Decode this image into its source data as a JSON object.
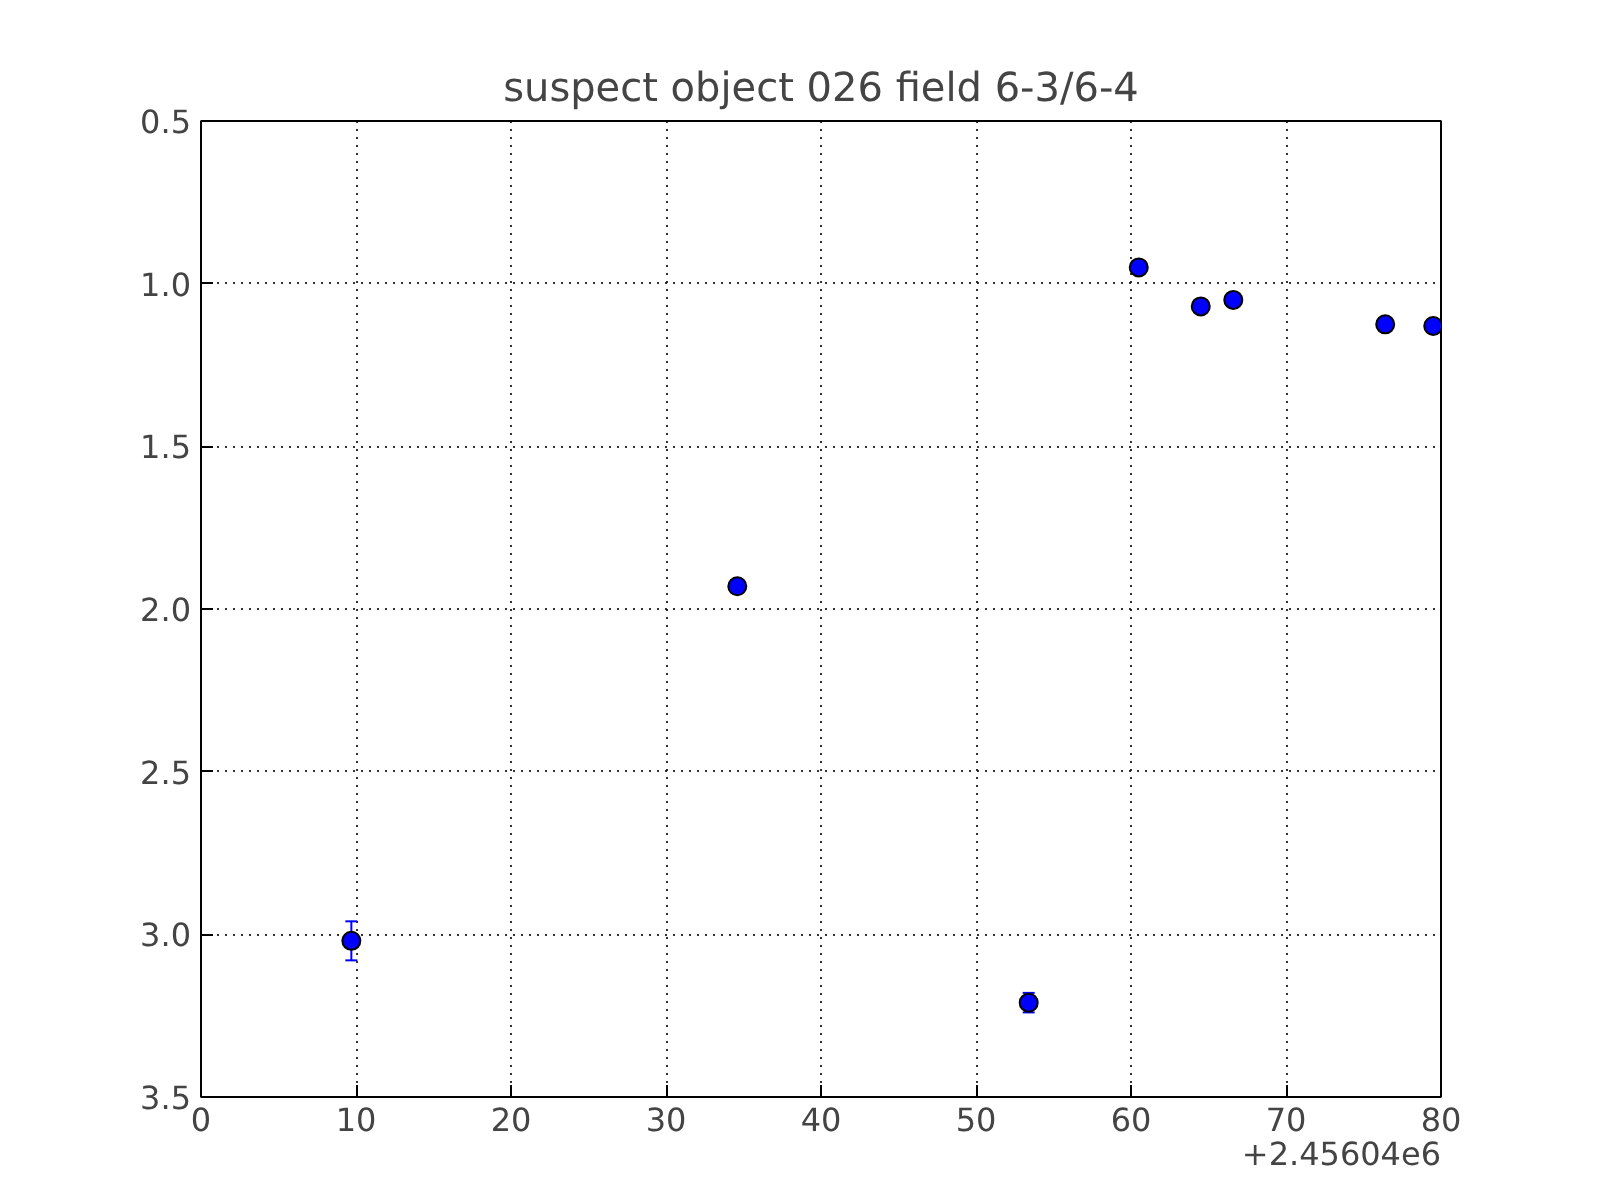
{
  "chart_data": {
    "type": "scatter",
    "title": "suspect object 026 field 6-3/6-4",
    "x": [
      9.7,
      34.6,
      53.4,
      60.5,
      64.5,
      66.6,
      76.4,
      79.5
    ],
    "series": [
      {
        "color": "#0000ff",
        "values": [
          3.02,
          1.93,
          3.21,
          0.95,
          1.07,
          1.05,
          1.125,
          1.13
        ],
        "errors": [
          0.06,
          null,
          0.03,
          null,
          null,
          null,
          null,
          null
        ]
      }
    ],
    "xlim": [
      0,
      80
    ],
    "xticks": [
      0,
      10,
      20,
      30,
      40,
      50,
      60,
      70,
      80
    ],
    "ylim": [
      3.5,
      0.5
    ],
    "yticks": [
      0.5,
      {
        "value": 1,
        "label": "1.0"
      },
      1.5,
      {
        "value": 2,
        "label": "2.0"
      },
      2.5,
      {
        "value": 3,
        "label": "3.0"
      },
      3.5
    ],
    "annotations": [
      "+2.45604e6"
    ],
    "grid": true,
    "marker": "circle",
    "line_style": "none"
  }
}
